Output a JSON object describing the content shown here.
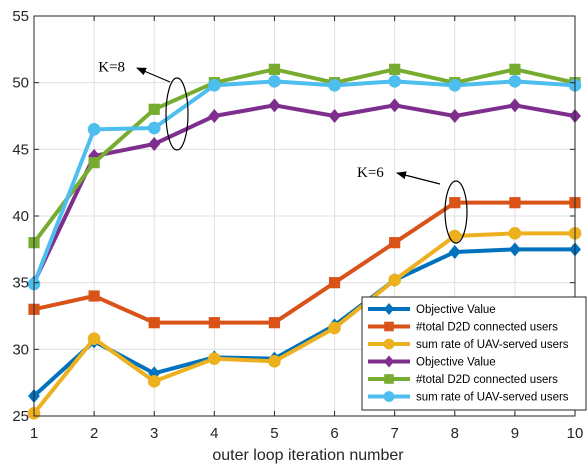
{
  "chart_data": {
    "type": "line",
    "title": "",
    "xlabel": "outer loop iteration number",
    "ylabel": "",
    "xlim": [
      1,
      10
    ],
    "ylim": [
      25,
      55
    ],
    "xticks": [
      "1",
      "2",
      "3",
      "4",
      "5",
      "6",
      "7",
      "8",
      "9",
      "10"
    ],
    "yticks": [
      "25",
      "30",
      "35",
      "40",
      "45",
      "50",
      "55"
    ],
    "grid": true,
    "legend_position": "bottom-right",
    "x": [
      1,
      2,
      3,
      4,
      5,
      6,
      7,
      8,
      9,
      10
    ],
    "series": [
      {
        "name": "Objective Value",
        "marker": "diamond",
        "color": "#0072BD",
        "values": [
          26.5,
          30.6,
          28.2,
          29.4,
          29.3,
          31.8,
          35.2,
          37.3,
          37.5,
          37.5
        ]
      },
      {
        "name": "#total D2D connected users",
        "marker": "square",
        "color": "#D95319",
        "values": [
          33,
          34,
          32,
          32,
          32,
          35,
          38,
          41,
          41,
          41
        ]
      },
      {
        "name": "sum rate of UAV-served users",
        "marker": "circle",
        "color": "#EDB120",
        "values": [
          25.2,
          30.8,
          27.6,
          29.3,
          29.1,
          31.6,
          35.2,
          38.5,
          38.7,
          38.7
        ]
      },
      {
        "name": "Objective Value",
        "marker": "diamond",
        "color": "#7E2F8E",
        "values": [
          35.0,
          44.5,
          45.4,
          47.5,
          48.3,
          47.5,
          48.3,
          47.5,
          48.3,
          47.5
        ]
      },
      {
        "name": "#total D2D connected users",
        "marker": "square",
        "color": "#77AC30",
        "values": [
          38,
          44,
          48,
          50,
          51,
          50,
          51,
          50,
          51,
          50
        ]
      },
      {
        "name": "sum rate of UAV-served users",
        "marker": "circle",
        "color": "#4DBEEE",
        "values": [
          34.9,
          46.5,
          46.6,
          49.8,
          50.1,
          49.8,
          50.1,
          49.8,
          50.1,
          49.8
        ]
      }
    ],
    "annotations": [
      {
        "text": "K=8",
        "x": 3.2,
        "y": 51.3
      },
      {
        "text": "K=6",
        "x": 8.5,
        "y": 42.4
      }
    ]
  }
}
